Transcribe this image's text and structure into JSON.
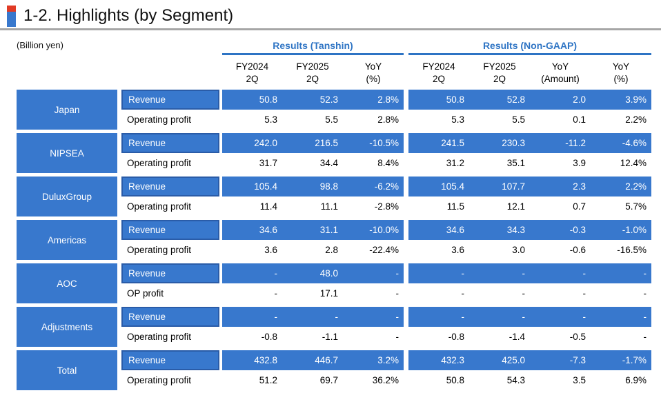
{
  "title": "1-2. Highlights (by Segment)",
  "unit_label": "(Billion yen)",
  "colors": {
    "cell_blue": "#3878CD",
    "cell_border_blue": "#2A5CA8",
    "header_blue": "#2E74C4",
    "accent_red": "#E13B25",
    "title_rule_gray": "#A6A6A6"
  },
  "table": {
    "groups": [
      {
        "label": "Results (Tanshin)",
        "columns": [
          {
            "line1": "FY2024",
            "line2": "2Q"
          },
          {
            "line1": "FY2025",
            "line2": "2Q"
          },
          {
            "line1": "YoY",
            "line2": "(%)"
          }
        ]
      },
      {
        "label": "Results (Non-GAAP)",
        "columns": [
          {
            "line1": "FY2024",
            "line2": "2Q"
          },
          {
            "line1": "FY2025",
            "line2": "2Q"
          },
          {
            "line1": "YoY",
            "line2": "(Amount)"
          },
          {
            "line1": "YoY",
            "line2": "(%)"
          }
        ]
      }
    ],
    "segments": [
      {
        "name": "Japan",
        "rows": [
          {
            "label": "Revenue",
            "tanshin": [
              "50.8",
              "52.3",
              "2.8%"
            ],
            "nongaap": [
              "50.8",
              "52.8",
              "2.0",
              "3.9%"
            ]
          },
          {
            "label": "Operating profit",
            "tanshin": [
              "5.3",
              "5.5",
              "2.8%"
            ],
            "nongaap": [
              "5.3",
              "5.5",
              "0.1",
              "2.2%"
            ]
          }
        ]
      },
      {
        "name": "NIPSEA",
        "rows": [
          {
            "label": "Revenue",
            "tanshin": [
              "242.0",
              "216.5",
              "-10.5%"
            ],
            "nongaap": [
              "241.5",
              "230.3",
              "-11.2",
              "-4.6%"
            ]
          },
          {
            "label": "Operating profit",
            "tanshin": [
              "31.7",
              "34.4",
              "8.4%"
            ],
            "nongaap": [
              "31.2",
              "35.1",
              "3.9",
              "12.4%"
            ]
          }
        ]
      },
      {
        "name": "DuluxGroup",
        "rows": [
          {
            "label": "Revenue",
            "tanshin": [
              "105.4",
              "98.8",
              "-6.2%"
            ],
            "nongaap": [
              "105.4",
              "107.7",
              "2.3",
              "2.2%"
            ]
          },
          {
            "label": "Operating profit",
            "tanshin": [
              "11.4",
              "11.1",
              "-2.8%"
            ],
            "nongaap": [
              "11.5",
              "12.1",
              "0.7",
              "5.7%"
            ]
          }
        ]
      },
      {
        "name": "Americas",
        "rows": [
          {
            "label": "Revenue",
            "tanshin": [
              "34.6",
              "31.1",
              "-10.0%"
            ],
            "nongaap": [
              "34.6",
              "34.3",
              "-0.3",
              "-1.0%"
            ]
          },
          {
            "label": "Operating profit",
            "tanshin": [
              "3.6",
              "2.8",
              "-22.4%"
            ],
            "nongaap": [
              "3.6",
              "3.0",
              "-0.6",
              "-16.5%"
            ]
          }
        ]
      },
      {
        "name": "AOC",
        "rows": [
          {
            "label": "Revenue",
            "tanshin": [
              "-",
              "48.0",
              "-"
            ],
            "nongaap": [
              "-",
              "-",
              "-",
              "-"
            ]
          },
          {
            "label": "OP profit",
            "tanshin": [
              "-",
              "17.1",
              "-"
            ],
            "nongaap": [
              "-",
              "-",
              "-",
              "-"
            ]
          }
        ]
      },
      {
        "name": "Adjustments",
        "rows": [
          {
            "label": "Revenue",
            "tanshin": [
              "-",
              "-",
              "-"
            ],
            "nongaap": [
              "-",
              "-",
              "-",
              "-"
            ]
          },
          {
            "label": "Operating profit",
            "tanshin": [
              "-0.8",
              "-1.1",
              "-"
            ],
            "nongaap": [
              "-0.8",
              "-1.4",
              "-0.5",
              "-"
            ]
          }
        ]
      },
      {
        "name": "Total",
        "rows": [
          {
            "label": "Revenue",
            "tanshin": [
              "432.8",
              "446.7",
              "3.2%"
            ],
            "nongaap": [
              "432.3",
              "425.0",
              "-7.3",
              "-1.7%"
            ]
          },
          {
            "label": "Operating profit",
            "tanshin": [
              "51.2",
              "69.7",
              "36.2%"
            ],
            "nongaap": [
              "50.8",
              "54.3",
              "3.5",
              "6.9%"
            ]
          }
        ]
      }
    ]
  }
}
